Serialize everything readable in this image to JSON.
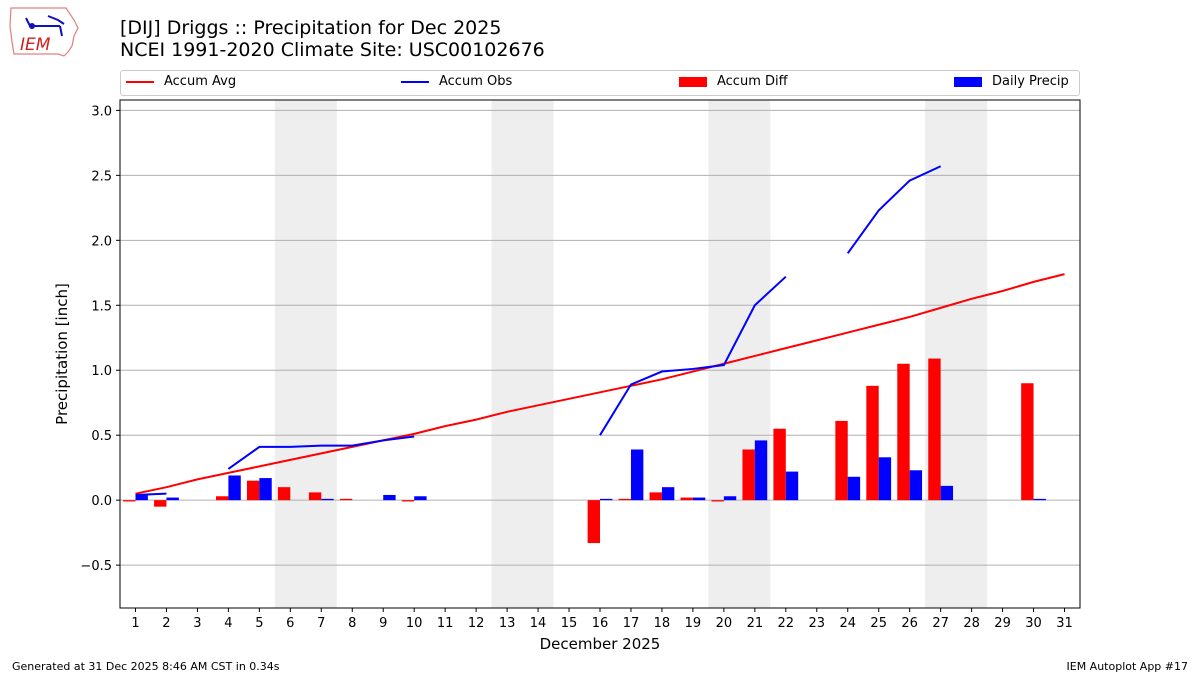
{
  "header": {
    "title": "[DIJ] Driggs :: Precipitation for Dec 2025",
    "subtitle": "NCEI 1991-2020 Climate Site: USC00102676",
    "logo_text": "IEM"
  },
  "footer": {
    "left": "Generated at 31 Dec 2025 8:46 AM CST in 0.34s",
    "right": "IEM Autoplot App #17"
  },
  "chart_data": {
    "type": "bar",
    "xlabel": "December 2025",
    "ylabel": "Precipitation [inch]",
    "xlim": [
      0.5,
      31.5
    ],
    "ylim": [
      -0.83,
      3.08
    ],
    "yticks": [
      -0.5,
      0.0,
      0.5,
      1.0,
      1.5,
      2.0,
      2.5,
      3.0
    ],
    "grid": "horizontal",
    "legend_placement": "top",
    "weekend_shading": [
      [
        6,
        7
      ],
      [
        13,
        14
      ],
      [
        20,
        21
      ],
      [
        27,
        28
      ]
    ],
    "days": [
      1,
      2,
      3,
      4,
      5,
      6,
      7,
      8,
      9,
      10,
      11,
      12,
      13,
      14,
      15,
      16,
      17,
      18,
      19,
      20,
      21,
      22,
      23,
      24,
      25,
      26,
      27,
      28,
      29,
      30,
      31
    ],
    "series": [
      {
        "name": "Accum Avg",
        "kind": "line",
        "color": "#ff0000",
        "values": [
          0.05,
          0.1,
          0.16,
          0.21,
          0.26,
          0.31,
          0.36,
          0.41,
          0.46,
          0.51,
          0.57,
          0.62,
          0.68,
          0.73,
          0.78,
          0.83,
          0.88,
          0.93,
          0.99,
          1.05,
          1.11,
          1.17,
          1.23,
          1.29,
          1.35,
          1.41,
          1.48,
          1.55,
          1.61,
          1.68,
          1.74
        ]
      },
      {
        "name": "Accum Obs",
        "kind": "line",
        "color": "#0000ff",
        "values": [
          0.04,
          0.05,
          null,
          0.24,
          0.41,
          0.41,
          0.42,
          0.42,
          0.46,
          0.49,
          null,
          null,
          null,
          null,
          null,
          0.5,
          0.89,
          0.99,
          1.01,
          1.04,
          1.5,
          1.72,
          null,
          1.9,
          2.23,
          2.46,
          2.57,
          null,
          null,
          null,
          null
        ]
      },
      {
        "name": "Accum Diff",
        "kind": "bar",
        "color": "#ff0000",
        "values": [
          -0.01,
          -0.05,
          null,
          0.03,
          0.15,
          0.1,
          0.06,
          0.01,
          null,
          -0.01,
          null,
          null,
          null,
          null,
          null,
          -0.33,
          0.01,
          0.06,
          0.02,
          -0.01,
          0.39,
          0.55,
          null,
          0.61,
          0.88,
          1.05,
          1.09,
          null,
          null,
          0.9,
          null
        ]
      },
      {
        "name": "Daily Precip",
        "kind": "bar",
        "color": "#0000ff",
        "values": [
          0.04,
          0.02,
          null,
          0.19,
          0.17,
          null,
          0.01,
          null,
          0.04,
          0.03,
          null,
          null,
          null,
          null,
          null,
          0.01,
          0.39,
          0.1,
          0.02,
          0.03,
          0.46,
          0.22,
          null,
          0.18,
          0.33,
          0.23,
          0.11,
          null,
          null,
          0.01,
          null
        ]
      }
    ]
  }
}
